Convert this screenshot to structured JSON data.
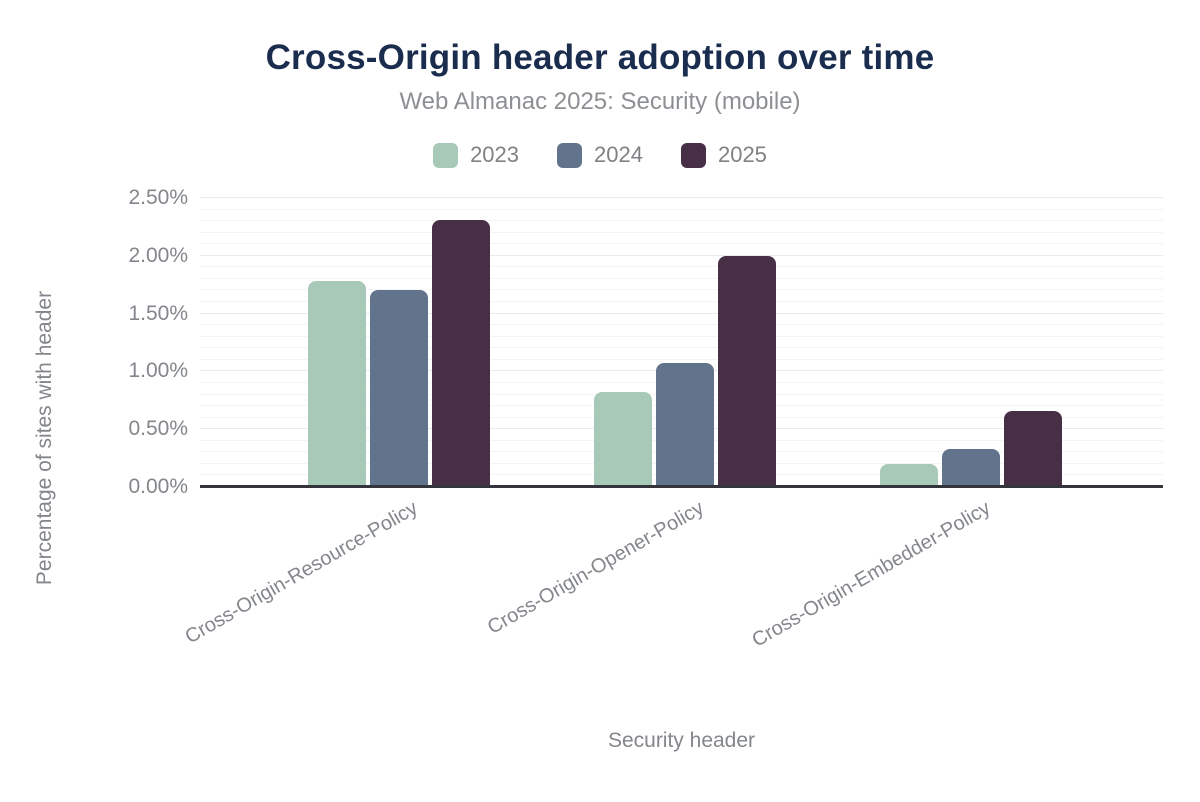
{
  "chart_data": {
    "type": "bar",
    "title": "Cross-Origin header adoption over time",
    "subtitle": "Web Almanac 2025: Security (mobile)",
    "categories": [
      "Cross-Origin-Resource-Policy",
      "Cross-Origin-Opener-Policy",
      "Cross-Origin-Embedder-Policy"
    ],
    "series": [
      {
        "name": "2023",
        "color": "#a9c9b8",
        "values": [
          1.78,
          0.82,
          0.2
        ]
      },
      {
        "name": "2024",
        "color": "#62748c",
        "values": [
          1.7,
          1.07,
          0.33
        ]
      },
      {
        "name": "2025",
        "color": "#473046",
        "values": [
          2.31,
          2.0,
          0.66
        ]
      }
    ],
    "xlabel": "Security header",
    "ylabel": "Percentage of sites with header",
    "ylim": [
      0,
      2.5
    ],
    "yticks": [
      {
        "value": 0.0,
        "label": "0.00%"
      },
      {
        "value": 0.5,
        "label": "0.50%"
      },
      {
        "value": 1.0,
        "label": "1.00%"
      },
      {
        "value": 1.5,
        "label": "1.50%"
      },
      {
        "value": 2.0,
        "label": "2.00%"
      },
      {
        "value": 2.5,
        "label": "2.50%"
      }
    ],
    "minor_tick_step": 0.1,
    "grid": true,
    "legend_position": "top",
    "colors": {
      "title": "#1b2d4f",
      "subtitle_text": "#8c8f93",
      "axis_text": "#83868b",
      "axis_line": "#34343c",
      "grid_major": "#eaeaec",
      "grid_minor": "#f4f4f6",
      "background": "#ffffff"
    }
  }
}
